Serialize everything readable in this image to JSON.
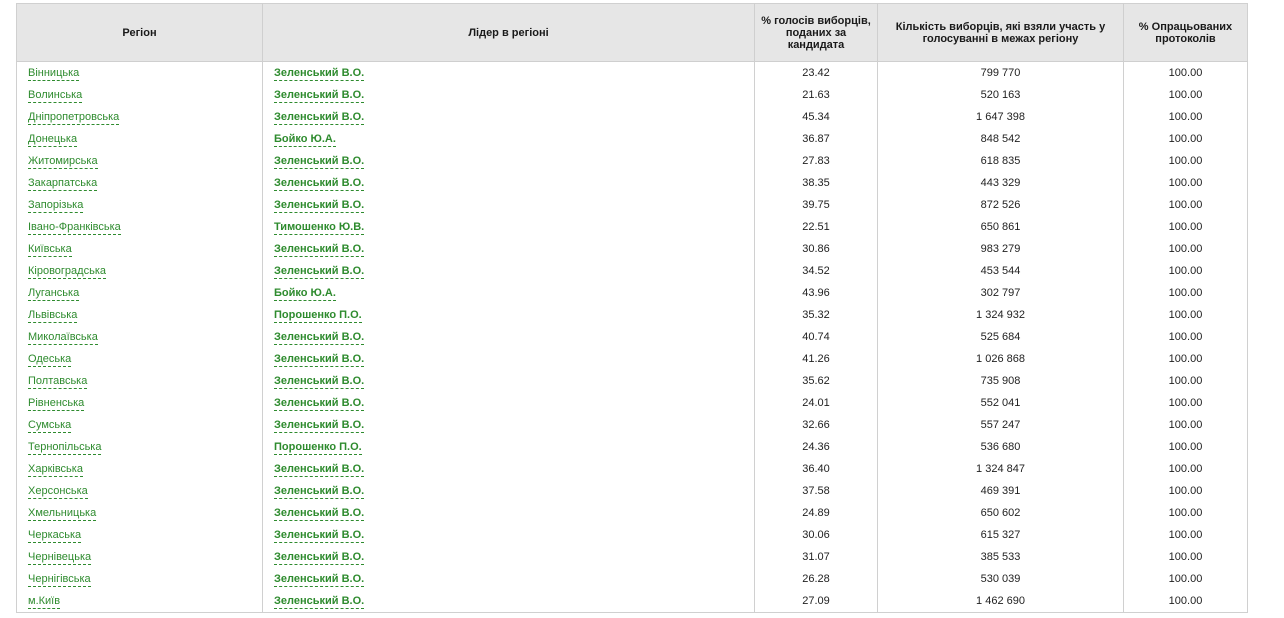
{
  "table": {
    "headers": {
      "region": "Регіон",
      "leader": "Лідер в регіоні",
      "votes_pct": "% голосів виборців, поданих за кандидата",
      "voters": "Кількість виборців, які взяли участь у голосуванні в межах регіону",
      "processed": "% Опрацьованих протоколів"
    },
    "rows": [
      {
        "region": "Вінницька",
        "leader": "Зеленський В.О.",
        "votes_pct": "23.42",
        "voters": "799 770",
        "processed": "100.00"
      },
      {
        "region": "Волинська",
        "leader": "Зеленський В.О.",
        "votes_pct": "21.63",
        "voters": "520 163",
        "processed": "100.00"
      },
      {
        "region": "Дніпропетровська",
        "leader": "Зеленський В.О.",
        "votes_pct": "45.34",
        "voters": "1 647 398",
        "processed": "100.00"
      },
      {
        "region": "Донецька",
        "leader": "Бойко Ю.А.",
        "votes_pct": "36.87",
        "voters": "848 542",
        "processed": "100.00"
      },
      {
        "region": "Житомирська",
        "leader": "Зеленський В.О.",
        "votes_pct": "27.83",
        "voters": "618 835",
        "processed": "100.00"
      },
      {
        "region": "Закарпатська",
        "leader": "Зеленський В.О.",
        "votes_pct": "38.35",
        "voters": "443 329",
        "processed": "100.00"
      },
      {
        "region": "Запорізька",
        "leader": "Зеленський В.О.",
        "votes_pct": "39.75",
        "voters": "872 526",
        "processed": "100.00"
      },
      {
        "region": "Івано-Франківська",
        "leader": "Тимошенко Ю.В.",
        "votes_pct": "22.51",
        "voters": "650 861",
        "processed": "100.00"
      },
      {
        "region": "Київська",
        "leader": "Зеленський В.О.",
        "votes_pct": "30.86",
        "voters": "983 279",
        "processed": "100.00"
      },
      {
        "region": "Кіровоградська",
        "leader": "Зеленський В.О.",
        "votes_pct": "34.52",
        "voters": "453 544",
        "processed": "100.00"
      },
      {
        "region": "Луганська",
        "leader": "Бойко Ю.А.",
        "votes_pct": "43.96",
        "voters": "302 797",
        "processed": "100.00"
      },
      {
        "region": "Львівська",
        "leader": "Порошенко П.О.",
        "votes_pct": "35.32",
        "voters": "1 324 932",
        "processed": "100.00"
      },
      {
        "region": "Миколаївська",
        "leader": "Зеленський В.О.",
        "votes_pct": "40.74",
        "voters": "525 684",
        "processed": "100.00"
      },
      {
        "region": "Одеська",
        "leader": "Зеленський В.О.",
        "votes_pct": "41.26",
        "voters": "1 026 868",
        "processed": "100.00"
      },
      {
        "region": "Полтавська",
        "leader": "Зеленський В.О.",
        "votes_pct": "35.62",
        "voters": "735 908",
        "processed": "100.00"
      },
      {
        "region": "Рівненська",
        "leader": "Зеленський В.О.",
        "votes_pct": "24.01",
        "voters": "552 041",
        "processed": "100.00"
      },
      {
        "region": "Сумська",
        "leader": "Зеленський В.О.",
        "votes_pct": "32.66",
        "voters": "557 247",
        "processed": "100.00"
      },
      {
        "region": "Тернопільська",
        "leader": "Порошенко П.О.",
        "votes_pct": "24.36",
        "voters": "536 680",
        "processed": "100.00"
      },
      {
        "region": "Харківська",
        "leader": "Зеленський В.О.",
        "votes_pct": "36.40",
        "voters": "1 324 847",
        "processed": "100.00"
      },
      {
        "region": "Херсонська",
        "leader": "Зеленський В.О.",
        "votes_pct": "37.58",
        "voters": "469 391",
        "processed": "100.00"
      },
      {
        "region": "Хмельницька",
        "leader": "Зеленський В.О.",
        "votes_pct": "24.89",
        "voters": "650 602",
        "processed": "100.00"
      },
      {
        "region": "Черкаська",
        "leader": "Зеленський В.О.",
        "votes_pct": "30.06",
        "voters": "615 327",
        "processed": "100.00"
      },
      {
        "region": "Чернівецька",
        "leader": "Зеленський В.О.",
        "votes_pct": "31.07",
        "voters": "385 533",
        "processed": "100.00"
      },
      {
        "region": "Чернігівська",
        "leader": "Зеленський В.О.",
        "votes_pct": "26.28",
        "voters": "530 039",
        "processed": "100.00"
      },
      {
        "region": "м.Київ",
        "leader": "Зеленський В.О.",
        "votes_pct": "27.09",
        "voters": "1 462 690",
        "processed": "100.00"
      }
    ]
  },
  "colors": {
    "link": "#2e8b2e",
    "header_bg": "#e6e6e6",
    "border": "#d0d0d0"
  }
}
